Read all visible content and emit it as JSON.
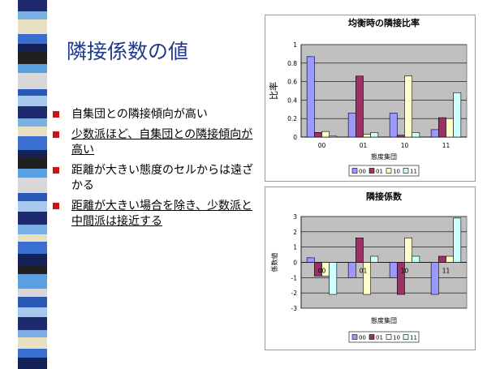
{
  "slide": {
    "title": "隣接係数の値",
    "bullets": [
      {
        "text": "自集団との隣接傾向が高い",
        "underline": false
      },
      {
        "text": "少数派ほど、自集団との隣接傾向が高い",
        "underline": true
      },
      {
        "text": "距離が大きい態度のセルからは遠ざかる",
        "underline": false
      },
      {
        "text": "距離が大きい場合を除き、少数派と中間派は接近する",
        "underline": true
      }
    ]
  },
  "theme": {
    "title_color": "#1f3a8a",
    "bullet_color": "#d21010",
    "plot_bg": "#c0c0c0",
    "stripe_colors": [
      "#1e2a6e",
      "#3a6fd0",
      "#5aa0e0",
      "#a8c8ee",
      "#e8e0c0",
      "#202020",
      "#2a58b8",
      "#7ab0e6",
      "#142058",
      "#d8d8d8"
    ]
  },
  "chart_data": [
    {
      "type": "bar",
      "title": "均衡時の隣接比率",
      "xlabel": "態度集団",
      "ylabel": "比率",
      "categories": [
        "00",
        "01",
        "10",
        "11"
      ],
      "yticks": [
        "0",
        "0.2",
        "0.4",
        "0.6",
        "0.8",
        "1"
      ],
      "ylim": [
        0,
        1
      ],
      "grid": true,
      "legend_position": "bottom",
      "series": [
        {
          "name": "00",
          "color": "#9999ff",
          "values": [
            0.87,
            0.26,
            0.26,
            0.08
          ]
        },
        {
          "name": "01",
          "color": "#993366",
          "values": [
            0.05,
            0.66,
            0.02,
            0.21
          ]
        },
        {
          "name": "10",
          "color": "#ffffcc",
          "values": [
            0.06,
            0.03,
            0.66,
            0.2
          ]
        },
        {
          "name": "11",
          "color": "#ccffff",
          "values": [
            0.01,
            0.05,
            0.05,
            0.48
          ]
        }
      ]
    },
    {
      "type": "bar",
      "title": "隣接係数",
      "xlabel": "態度集団",
      "ylabel": "係数値",
      "categories": [
        "00",
        "01",
        "10",
        "11"
      ],
      "yticks": [
        "-3",
        "-2",
        "-1",
        "0",
        "1",
        "2",
        "3"
      ],
      "ylim": [
        -3,
        3
      ],
      "grid": true,
      "legend_position": "bottom",
      "series": [
        {
          "name": "00",
          "color": "#9999ff",
          "values": [
            0.3,
            -1.0,
            -1.0,
            -2.1
          ]
        },
        {
          "name": "01",
          "color": "#993366",
          "values": [
            -0.9,
            1.6,
            -2.1,
            0.4
          ]
        },
        {
          "name": "10",
          "color": "#ffffcc",
          "values": [
            -0.9,
            -2.1,
            1.6,
            0.4
          ]
        },
        {
          "name": "11",
          "color": "#ccffff",
          "values": [
            -2.1,
            0.4,
            0.4,
            2.9
          ]
        }
      ]
    }
  ]
}
